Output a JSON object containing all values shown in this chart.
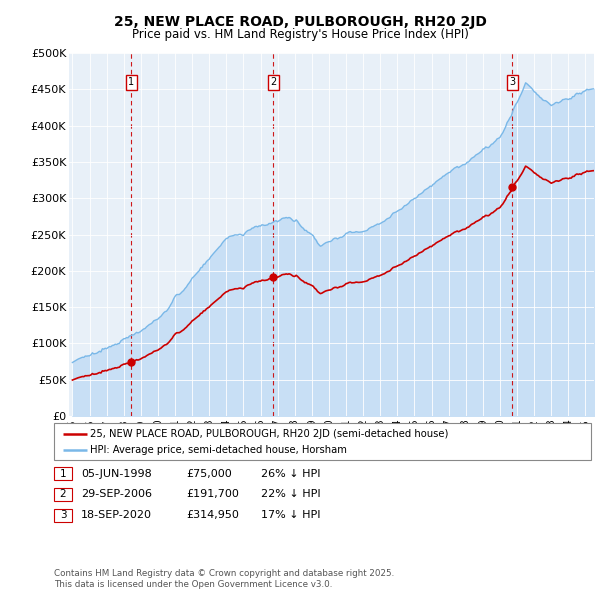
{
  "title": "25, NEW PLACE ROAD, PULBOROUGH, RH20 2JD",
  "subtitle": "Price paid vs. HM Land Registry's House Price Index (HPI)",
  "hpi_color": "#7ab8e8",
  "hpi_fill_color": "#c8dff5",
  "price_color": "#cc0000",
  "background_color": "#e8f0f8",
  "ylim": [
    0,
    500000
  ],
  "yticks": [
    0,
    50000,
    100000,
    150000,
    200000,
    250000,
    300000,
    350000,
    400000,
    450000,
    500000
  ],
  "ytick_labels": [
    "£0",
    "£50K",
    "£100K",
    "£150K",
    "£200K",
    "£250K",
    "£300K",
    "£350K",
    "£400K",
    "£450K",
    "£500K"
  ],
  "legend_line1": "25, NEW PLACE ROAD, PULBOROUGH, RH20 2JD (semi-detached house)",
  "legend_line2": "HPI: Average price, semi-detached house, Horsham",
  "sale1_date": "05-JUN-1998",
  "sale1_price": "£75,000",
  "sale1_hpi": "26% ↓ HPI",
  "sale1_year": 1998.43,
  "sale1_price_val": 75000,
  "sale2_date": "29-SEP-2006",
  "sale2_price": "£191,700",
  "sale2_hpi": "22% ↓ HPI",
  "sale2_year": 2006.75,
  "sale2_price_val": 191700,
  "sale3_date": "18-SEP-2020",
  "sale3_price": "£314,950",
  "sale3_hpi": "17% ↓ HPI",
  "sale3_year": 2020.71,
  "sale3_price_val": 314950,
  "footer": "Contains HM Land Registry data © Crown copyright and database right 2025.\nThis data is licensed under the Open Government Licence v3.0."
}
